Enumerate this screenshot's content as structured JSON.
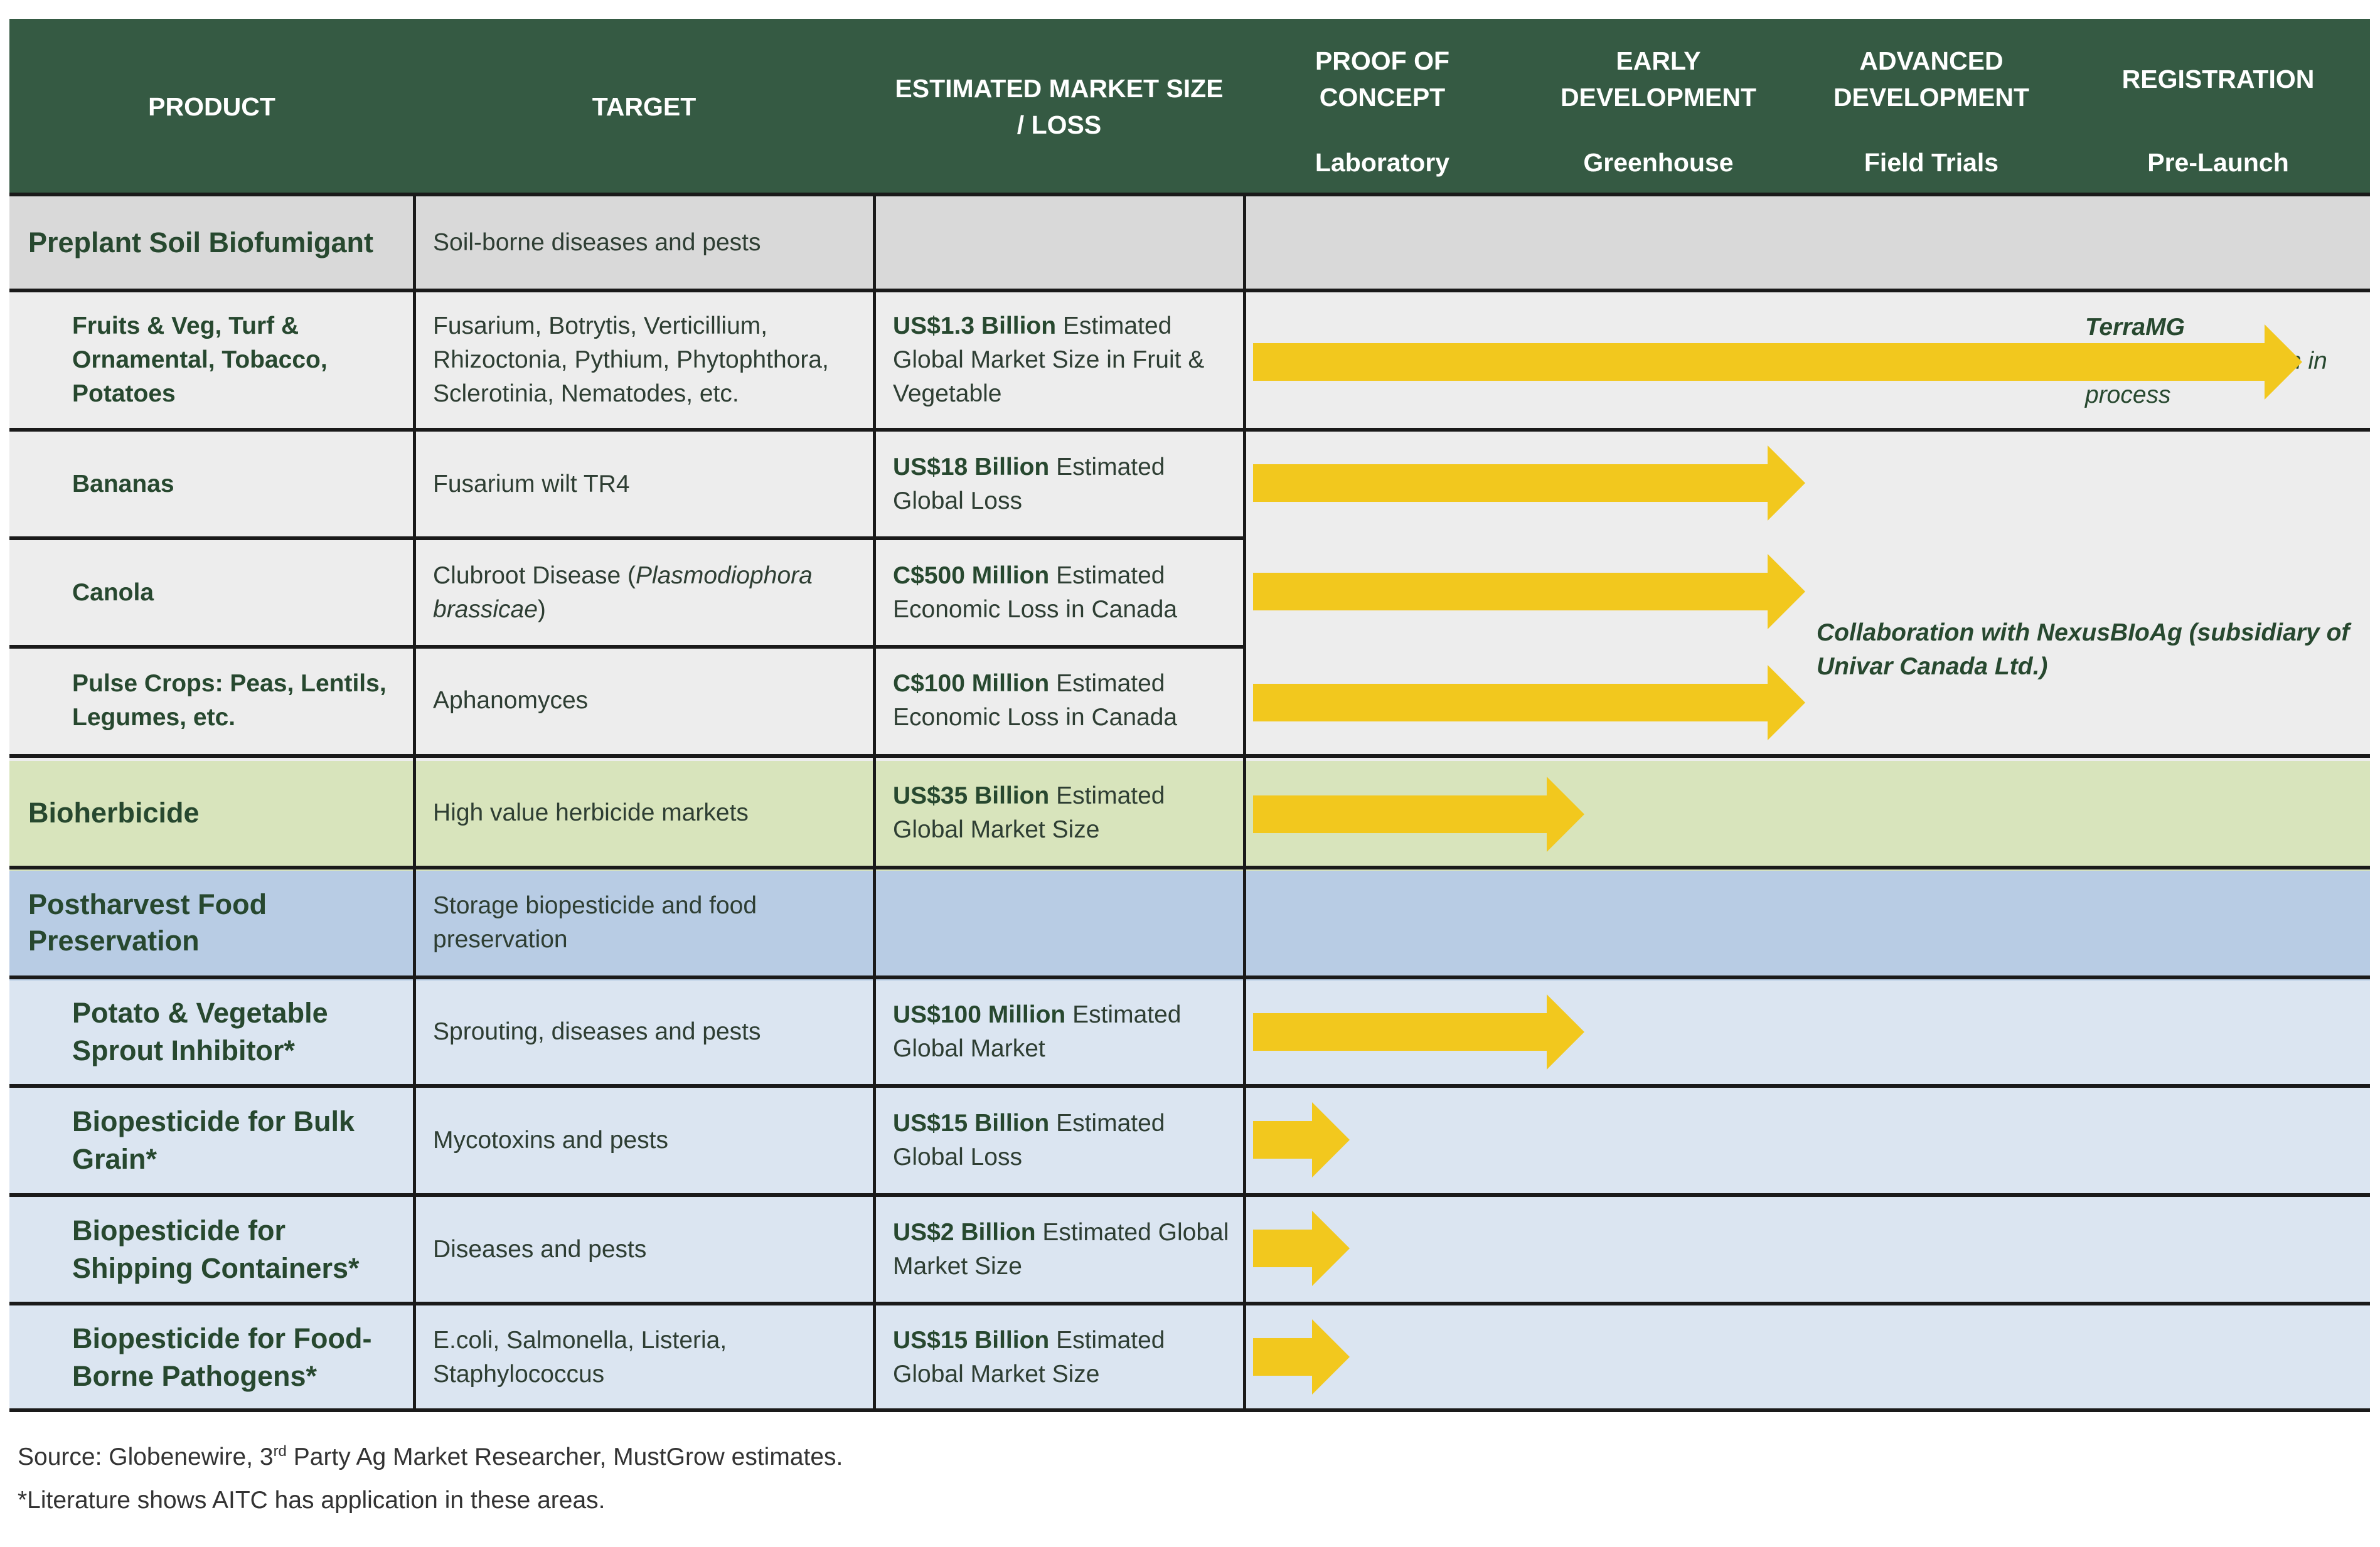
{
  "header": {
    "product": "PRODUCT",
    "target": "TARGET",
    "market_line1": "ESTIMATED MARKET SIZE",
    "market_line2": "/ LOSS",
    "stages": [
      {
        "line1": "PROOF OF",
        "line2": "CONCEPT",
        "sub": "Laboratory"
      },
      {
        "line1": "EARLY",
        "line2": "DEVELOPMENT",
        "sub": "Greenhouse"
      },
      {
        "line1": "ADVANCED",
        "line2": "DEVELOPMENT",
        "sub": "Field Trials"
      },
      {
        "line1": "REGISTRATION",
        "line2": "",
        "sub": "Pre-Launch"
      }
    ]
  },
  "rows": [
    {
      "product": "Preplant Soil Biofumigant",
      "target": "Soil-borne diseases and pests",
      "market_bold": "",
      "market_rest": ""
    },
    {
      "product": "Fruits & Veg, Turf & Ornamental, Tobacco, Potatoes",
      "target": "Fusarium, Botrytis, Verticillium, Rhizoctonia, Pythium, Phytophthora, Sclerotinia, Nematodes, etc.",
      "market_bold": "US$1.3 Billion",
      "market_rest": " Estimated Global Market Size in Fruit & Vegetable"
    },
    {
      "product": "Bananas",
      "target": "Fusarium wilt TR4",
      "market_bold": "US$18 Billion",
      "market_rest": " Estimated Global Loss"
    },
    {
      "product": "Canola",
      "target": "Clubroot Disease (",
      "target_italic": "Plasmodiophora brassicae",
      "target_end": ")",
      "market_bold": "C$500 Million",
      "market_rest": " Estimated Economic Loss in Canada"
    },
    {
      "product": "Pulse Crops: Peas, Lentils, Legumes, etc.",
      "target": "Aphanomyces",
      "market_bold": "C$100 Million",
      "market_rest": " Estimated Economic Loss in Canada"
    },
    {
      "product": "Bioherbicide",
      "target": "High value herbicide markets",
      "market_bold": "US$35 Billion",
      "market_rest": " Estimated Global Market Size"
    },
    {
      "product": "Postharvest Food Preservation",
      "target": "Storage biopesticide and food preservation",
      "market_bold": "",
      "market_rest": ""
    },
    {
      "product": "Potato & Vegetable Sprout Inhibitor*",
      "target": "Sprouting, diseases and pests",
      "market_bold": "US$100 Million",
      "market_rest": " Estimated Global Market"
    },
    {
      "product": "Biopesticide for Bulk Grain*",
      "target": "Mycotoxins and pests",
      "market_bold": "US$15 Billion",
      "market_rest": " Estimated Global Loss"
    },
    {
      "product": "Biopesticide for Shipping Containers*",
      "target": "Diseases and pests",
      "market_bold": "US$2 Billion",
      "market_rest": " Estimated Global Market Size"
    },
    {
      "product": "Biopesticide for Food-Borne Pathogens*",
      "target": "E.coli, Salmonella, Listeria, Staphylococcus",
      "market_bold": "US$15 Billion",
      "market_rest": " Estimated Global Market Size"
    }
  ],
  "notes": {
    "terramg_title": "TerraMG",
    "terramg_text": "US-EPA registration in process",
    "collab": "Collaboration with NexusBIoAg (subsidiary of Univar Canada Ltd.)"
  },
  "progress": [
    {
      "row": 1,
      "stage_reached": 3.8
    },
    {
      "row": 2,
      "stage_reached": 2.0
    },
    {
      "row": 3,
      "stage_reached": 2.0
    },
    {
      "row": 4,
      "stage_reached": 2.0
    },
    {
      "row": 5,
      "stage_reached": 1.2
    },
    {
      "row": 7,
      "stage_reached": 1.2
    },
    {
      "row": 8,
      "stage_reached": 0.35
    },
    {
      "row": 9,
      "stage_reached": 0.35
    },
    {
      "row": 10,
      "stage_reached": 0.35
    }
  ],
  "colors": {
    "header": "#355a43",
    "arrow": "#f2c81e",
    "gray_section": "#d9d9d9",
    "light_gray": "#ededed",
    "green_section": "#d8e4bc",
    "blue_section": "#b8cce4",
    "light_blue": "#dbe5f1"
  },
  "footer": {
    "source_pre": "Source: Globenewire, 3",
    "source_sup": "rd",
    "source_post": " Party Ag Market Researcher, MustGrow estimates.",
    "literature": "*Literature shows AITC has application in these areas."
  }
}
